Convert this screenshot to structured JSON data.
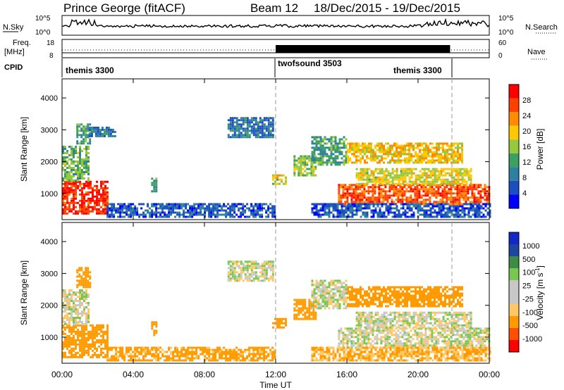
{
  "header": {
    "station": "Prince George (fitACF)",
    "beam": "Beam 12",
    "date_range": "18/Dec/2015 - 19/Dec/2015"
  },
  "noise_panel": {
    "left_label": "N.Sky",
    "right_label": "N.Search",
    "ticks_left": [
      "10^5",
      "10^0"
    ],
    "ticks_right": [
      "10^5",
      "10^0"
    ]
  },
  "freq_panel": {
    "left_label_top": "Freq.",
    "left_label_bottom": "[MHz]",
    "right_label": "Nave",
    "ticks_left": [
      "18",
      "8"
    ],
    "ticks_right": [
      "60",
      "0"
    ]
  },
  "cpid": {
    "label": "CPID",
    "segments": [
      {
        "name": "themis 3300",
        "start_h": 0,
        "end_h": 12
      },
      {
        "name": "twofsound 3503",
        "start_h": 12,
        "end_h": 21.8
      },
      {
        "name": "themis 3300",
        "start_h": 12,
        "end_h": 21.8
      }
    ]
  },
  "colors": {
    "power": [
      "#0000ff",
      "#1b4fc0",
      "#2e7fa0",
      "#3ea060",
      "#96c83c",
      "#ffc800",
      "#ff8c00",
      "#ff4000",
      "#ff0000"
    ],
    "velocity": [
      "#ff0000",
      "#ff5000",
      "#ff9b00",
      "#ffc864",
      "#c8c8c8",
      "#c8c8c8",
      "#78c850",
      "#3c8c46",
      "#1e46a0",
      "#1428c8"
    ],
    "ground_scatter": "#bebebe"
  },
  "chart_data": [
    {
      "type": "heatmap",
      "title": "Power",
      "ylabel": "Slant Range [km]",
      "xlabel": "Time UT",
      "xlim": [
        0,
        24
      ],
      "ylim": [
        180,
        4600
      ],
      "x_ticks": [
        "00:00",
        "04:00",
        "08:00",
        "12:00",
        "16:00",
        "20:00",
        "00:00"
      ],
      "y_ticks": [
        1000,
        2000,
        3000,
        4000
      ],
      "colorbar": {
        "label": "Power [dB]",
        "ticks": [
          "28",
          "24",
          "20",
          "16",
          "12",
          "8",
          "4"
        ]
      },
      "regions": [
        {
          "t": [
            0.0,
            2.5
          ],
          "r": [
            400,
            1400
          ],
          "v": 26
        },
        {
          "t": [
            0.0,
            1.5
          ],
          "r": [
            1400,
            2500
          ],
          "v": 12
        },
        {
          "t": [
            0.8,
            1.6
          ],
          "r": [
            2600,
            3200
          ],
          "v": 10
        },
        {
          "t": [
            1.5,
            3.0
          ],
          "r": [
            2800,
            3100
          ],
          "v": 6
        },
        {
          "t": [
            2.5,
            12.0
          ],
          "r": [
            300,
            700
          ],
          "v": 4
        },
        {
          "t": [
            5.0,
            5.3
          ],
          "r": [
            1100,
            1500
          ],
          "v": 10
        },
        {
          "t": [
            9.3,
            11.8
          ],
          "r": [
            2800,
            3400
          ],
          "v": 6
        },
        {
          "t": [
            11.8,
            12.6
          ],
          "r": [
            1300,
            1600
          ],
          "v": 16
        },
        {
          "t": [
            13.0,
            14.3
          ],
          "r": [
            1600,
            2200
          ],
          "v": 14
        },
        {
          "t": [
            14.0,
            16.0
          ],
          "r": [
            1900,
            2800
          ],
          "v": 10
        },
        {
          "t": [
            15.5,
            24.0
          ],
          "r": [
            700,
            1300
          ],
          "v": 24
        },
        {
          "t": [
            16.5,
            23.0
          ],
          "r": [
            1300,
            1800
          ],
          "v": 16
        },
        {
          "t": [
            16.0,
            22.5
          ],
          "r": [
            2000,
            2600
          ],
          "v": 18
        },
        {
          "t": [
            14.0,
            24.0
          ],
          "r": [
            300,
            700
          ],
          "v": 4
        }
      ]
    },
    {
      "type": "heatmap",
      "title": "Velocity",
      "ylabel": "Slant Range [km]",
      "xlabel": "Time UT",
      "xlim": [
        0,
        24
      ],
      "ylim": [
        180,
        4600
      ],
      "x_ticks": [
        "00:00",
        "04:00",
        "08:00",
        "12:00",
        "16:00",
        "20:00",
        "00:00"
      ],
      "y_ticks": [
        1000,
        2000,
        3000,
        4000
      ],
      "colorbar": {
        "label": "Velocity [m s^-1]",
        "ticks": [
          "1000",
          "500",
          "100",
          "25",
          "-25",
          "-100",
          "-500",
          "-1000"
        ]
      },
      "regions": [
        {
          "t": [
            0.0,
            2.5
          ],
          "r": [
            400,
            1400
          ],
          "v": -300
        },
        {
          "t": [
            0.0,
            1.5
          ],
          "r": [
            1400,
            2500
          ],
          "v": 0
        },
        {
          "t": [
            0.8,
            1.6
          ],
          "r": [
            2600,
            3200
          ],
          "v": -200
        },
        {
          "t": [
            2.5,
            12.0
          ],
          "r": [
            300,
            700
          ],
          "v": -150
        },
        {
          "t": [
            5.0,
            5.3
          ],
          "r": [
            1100,
            1500
          ],
          "v": -300
        },
        {
          "t": [
            9.3,
            11.8
          ],
          "r": [
            2800,
            3400
          ],
          "v": 0
        },
        {
          "t": [
            11.8,
            12.6
          ],
          "r": [
            1300,
            1600
          ],
          "v": -300
        },
        {
          "t": [
            13.0,
            14.3
          ],
          "r": [
            1600,
            2200
          ],
          "v": -400
        },
        {
          "t": [
            14.0,
            16.0
          ],
          "r": [
            1900,
            2800
          ],
          "v": 0
        },
        {
          "t": [
            15.5,
            24.0
          ],
          "r": [
            700,
            1300
          ],
          "v": 0
        },
        {
          "t": [
            16.5,
            23.0
          ],
          "r": [
            1300,
            1800
          ],
          "v": 0
        },
        {
          "t": [
            16.0,
            22.5
          ],
          "r": [
            2000,
            2600
          ],
          "v": -250
        },
        {
          "t": [
            14.0,
            24.0
          ],
          "r": [
            300,
            700
          ],
          "v": -100
        }
      ]
    }
  ]
}
